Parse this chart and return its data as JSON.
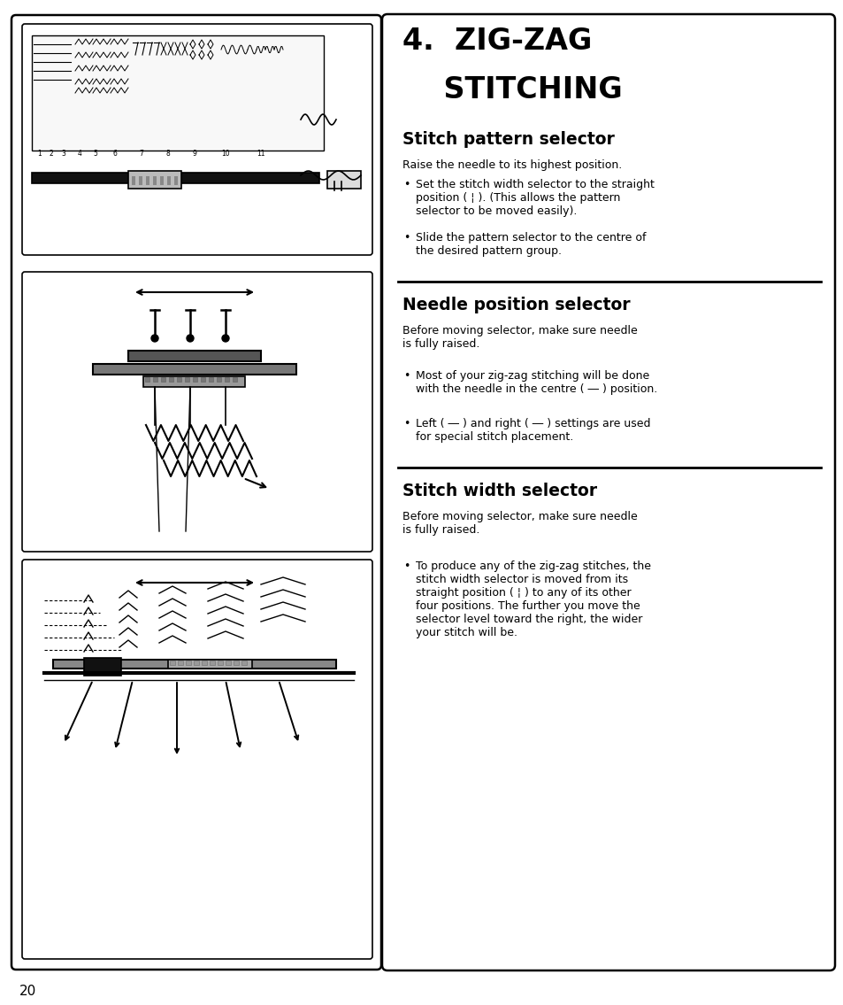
{
  "bg_color": "#ffffff",
  "page_number": "20",
  "title_line1": "4.  ZIG-ZAG",
  "title_line2": "    STITCHING",
  "section1_title": "Stitch pattern selector",
  "section1_intro": "Raise the needle to its highest position.",
  "section1_b1": "Set the stitch width selector to the straight\nposition ( ¦ ). (This allows the pattern\nselector to be moved easily).",
  "section1_b2": "Slide the pattern selector to the centre of\nthe desired pattern group.",
  "section2_title": "Needle position selector",
  "section2_intro": "Before moving selector, make sure needle\nis fully raised.",
  "section2_b1": "Most of your zig-zag stitching will be done\nwith the needle in the centre ( ― ) position.",
  "section2_b2": "Left ( ― ) and right ( ― ) settings are used\nfor special stitch placement.",
  "section3_title": "Stitch width selector",
  "section3_intro": "Before moving selector, make sure needle\nis fully raised.",
  "section3_b1": "To produce any of the zig-zag stitches, the\nstitch width selector is moved from its\nstraight position ( ¦ ) to any of its other\nfour positions. The further you move the\nselector level toward the right, the wider\nyour stitch will be.",
  "text_color": "#000000"
}
